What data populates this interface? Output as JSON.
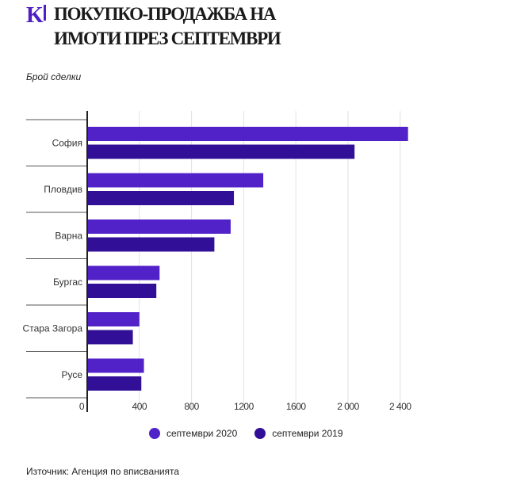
{
  "header": {
    "logo_letter": "K",
    "title_line1": "Покупко-продажба на",
    "title_line2": "имоти през септември"
  },
  "chart_data": {
    "type": "bar",
    "orientation": "horizontal",
    "title": "Покупко-продажба на имоти през септември",
    "ylabel": "Брой сделки",
    "xlabel": "",
    "categories": [
      "София",
      "Пловдив",
      "Варна",
      "Бургас",
      "Стара Загора",
      "Русе"
    ],
    "series": [
      {
        "name": "септември 2020",
        "color": "#5222c9",
        "values": [
          2460,
          1350,
          1100,
          555,
          400,
          435
        ]
      },
      {
        "name": "септември 2019",
        "color": "#310f96",
        "values": [
          2050,
          1125,
          975,
          530,
          350,
          415
        ]
      }
    ],
    "xlim": [
      0,
      2600
    ],
    "xticks": [
      0,
      400,
      800,
      1200,
      1600,
      2000,
      2400
    ],
    "xtick_labels": [
      "0",
      "400",
      "800",
      "1200",
      "1600",
      "2 000",
      "2 400"
    ],
    "grid": true,
    "legend_position": "bottom"
  },
  "source": "Източник: Агенция по вписванията"
}
